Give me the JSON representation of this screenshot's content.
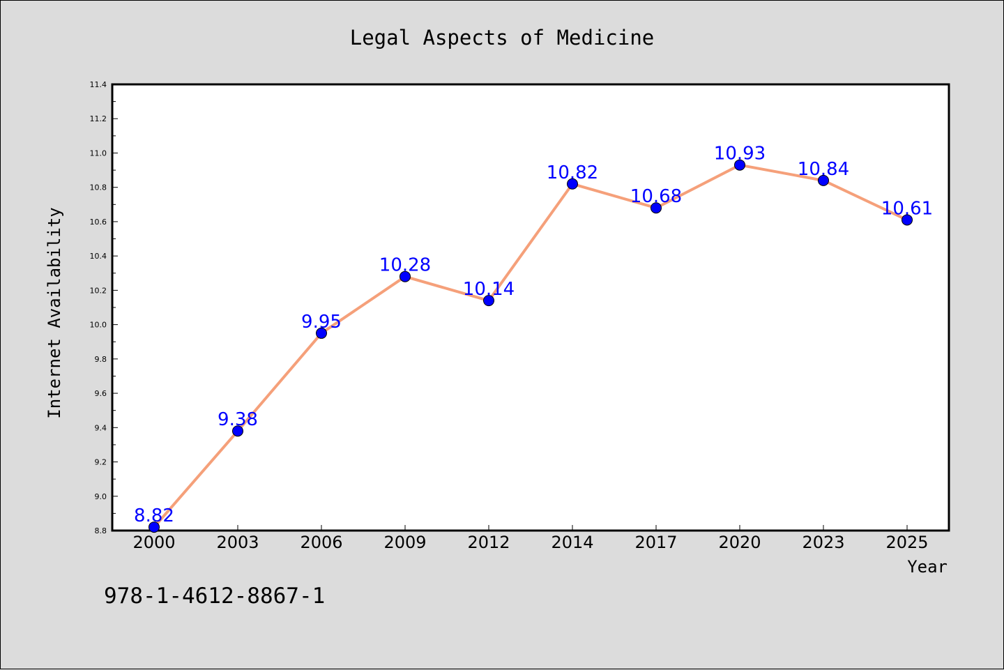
{
  "chart_data": {
    "type": "line",
    "title": "Legal Aspects of Medicine",
    "xlabel": "Year",
    "ylabel": "Internet Availability",
    "categories": [
      "2000",
      "2003",
      "2006",
      "2009",
      "2012",
      "2014",
      "2017",
      "2020",
      "2023",
      "2025"
    ],
    "series": [
      {
        "values": [
          8.82,
          9.38,
          9.95,
          10.28,
          10.14,
          10.82,
          10.68,
          10.93,
          10.84,
          10.61
        ]
      }
    ],
    "data_labels": [
      "8.82",
      "9.38",
      "9.95",
      "10.28",
      "10.14",
      "10.82",
      "10.68",
      "10.93",
      "10.84",
      "10.61"
    ],
    "ylim": [
      8.8,
      11.4
    ],
    "yticks": [
      "8.8",
      "9.0",
      "9.2",
      "9.4",
      "9.6",
      "9.8",
      "10.0",
      "10.2",
      "10.4",
      "10.6",
      "10.8",
      "11.0",
      "11.2",
      "11.4"
    ],
    "grid": false,
    "legend": "none",
    "colors": {
      "line": "#f5a07a",
      "marker": "#0000ff",
      "label": "#0000ff",
      "background": "#dcdcdc",
      "plot_area": "#ffffff"
    }
  },
  "annotation": {
    "isbn": "978-1-4612-8867-1"
  }
}
